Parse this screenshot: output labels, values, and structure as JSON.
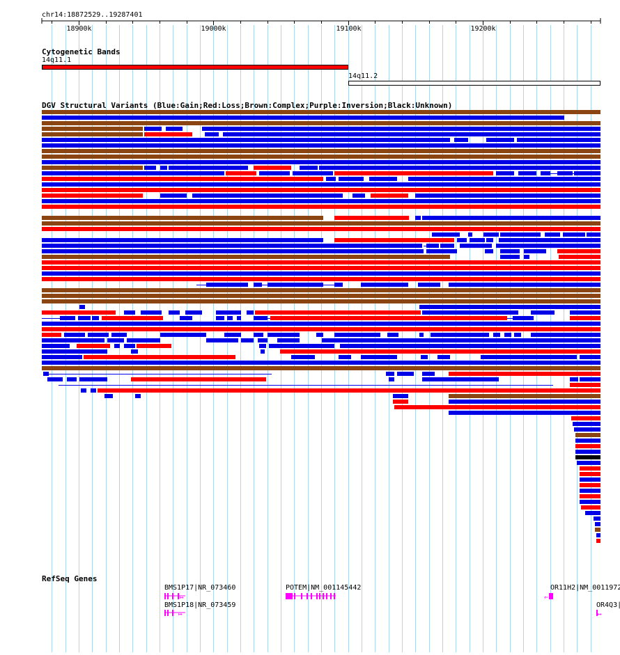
{
  "browser": {
    "region_label": "chr14:18872529..19287401",
    "region": {
      "chrom": "chr14",
      "start": 18872529,
      "end": 19287401
    },
    "ruler": {
      "ticks": [
        {
          "label": "18900k",
          "pos": 18900000
        },
        {
          "label": "19000k",
          "pos": 19000000
        },
        {
          "label": "19100k",
          "pos": 19100000
        },
        {
          "label": "19200k",
          "pos": 19200000
        }
      ]
    },
    "colors": {
      "gain": "#0000e6",
      "loss": "#ff0000",
      "complex": "#8b4513",
      "inversion": "#800080",
      "unknown": "#000000",
      "band_1": "#ff0000",
      "band_2": "#ffffff",
      "gene": "#ff00ff",
      "grid": "#a8d8ea"
    },
    "tracks": {
      "cytoband": {
        "title": "Cytogenetic Bands",
        "bands": [
          {
            "name": "14q11.1",
            "start": 18872529,
            "end": 19100000,
            "color_key": "band_1"
          },
          {
            "name": "14q11.2",
            "start": 19100000,
            "end": 19287401,
            "color_key": "band_2"
          }
        ]
      },
      "dgv": {
        "title": "DGV Structural Variants (Blue:Gain;Red:Loss;Brown:Complex;Purple:Inversion;Black:Unknown)"
      },
      "refseq": {
        "title": "RefSeq Genes",
        "genes": [
          {
            "label": "BMS1P17|NR_073460",
            "strand": "+",
            "kind": "exons"
          },
          {
            "label": "BMS1P18|NR_073459",
            "strand": "+",
            "kind": "exons"
          },
          {
            "label": "POTEM|NM_001145442",
            "strand": "-",
            "kind": "exons"
          },
          {
            "label": "OR11H2|NM_0011972",
            "strand": "-",
            "kind": "single"
          },
          {
            "label": "OR4Q3|",
            "strand": "+",
            "kind": "single"
          }
        ]
      }
    }
  }
}
